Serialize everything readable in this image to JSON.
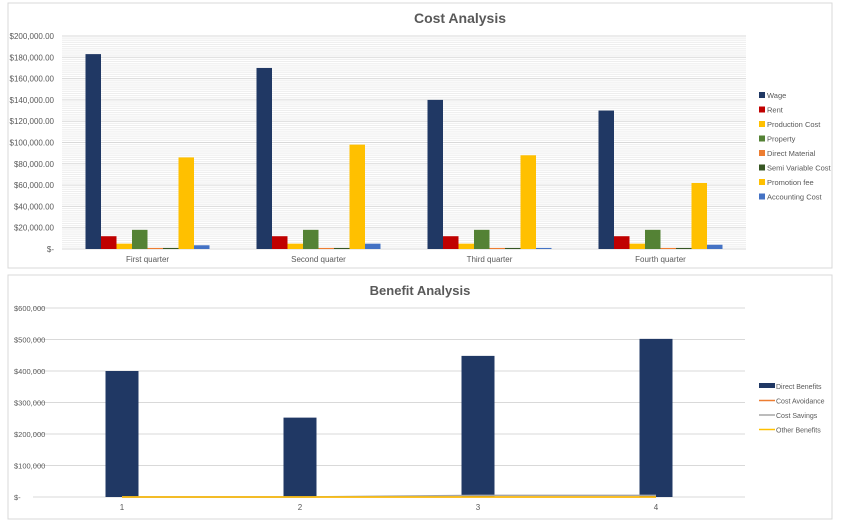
{
  "chart_data": [
    {
      "type": "bar",
      "title": "Cost Analysis",
      "categories": [
        "First quarter",
        "Second quarter",
        "Third quarter",
        "Fourth quarter"
      ],
      "ylim": [
        0,
        200000
      ],
      "yticks": [
        "$-",
        "$20,000.00",
        "$40,000.00",
        "$60,000.00",
        "$80,000.00",
        "$100,000.00",
        "$120,000.00",
        "$140,000.00",
        "$160,000.00",
        "$180,000.00",
        "$200,000.00"
      ],
      "grid": true,
      "legend": "right",
      "series": [
        {
          "name": "Wage",
          "color": "#203864",
          "values": [
            183000,
            170000,
            140000,
            130000
          ]
        },
        {
          "name": "Rent",
          "color": "#c00000",
          "values": [
            12000,
            12000,
            12000,
            12000
          ]
        },
        {
          "name": "Production Cost",
          "color": "#ffc000",
          "values": [
            5000,
            5000,
            5000,
            5000
          ]
        },
        {
          "name": "Property",
          "color": "#548235",
          "values": [
            18000,
            18000,
            18000,
            18000
          ]
        },
        {
          "name": "Direct Material",
          "color": "#ed7d31",
          "values": [
            1000,
            1000,
            1000,
            1000
          ]
        },
        {
          "name": "Semi Variable Cost",
          "color": "#375623",
          "values": [
            1000,
            1000,
            1000,
            1000
          ]
        },
        {
          "name": "Promotion fee",
          "color": "#ffc000",
          "values": [
            86000,
            98000,
            88000,
            62000
          ]
        },
        {
          "name": "Accounting Cost",
          "color": "#4472c4",
          "values": [
            3500,
            5000,
            1000,
            4000
          ]
        }
      ]
    },
    {
      "type": "bar",
      "title": "Benefit Analysis",
      "categories": [
        "1",
        "2",
        "3",
        "4"
      ],
      "ylim": [
        0,
        600000
      ],
      "yticks": [
        "$-",
        "$100,000",
        "$200,000",
        "$300,000",
        "$400,000",
        "$500,000",
        "$600,000"
      ],
      "grid": true,
      "legend": "right",
      "series": [
        {
          "name": "Direct Benefits",
          "kind": "bar",
          "color": "#203864",
          "values": [
            400000,
            252000,
            448000,
            502000
          ]
        },
        {
          "name": "Cost Avoidance",
          "kind": "line",
          "color": "#ed7d31",
          "values": [
            0,
            0,
            0,
            0
          ]
        },
        {
          "name": "Cost Savings",
          "kind": "line",
          "color": "#a5a5a5",
          "values": [
            0,
            0,
            5000,
            5000
          ]
        },
        {
          "name": "Other Benefits",
          "kind": "line",
          "color": "#ffc000",
          "values": [
            0,
            0,
            0,
            0
          ]
        }
      ]
    }
  ]
}
